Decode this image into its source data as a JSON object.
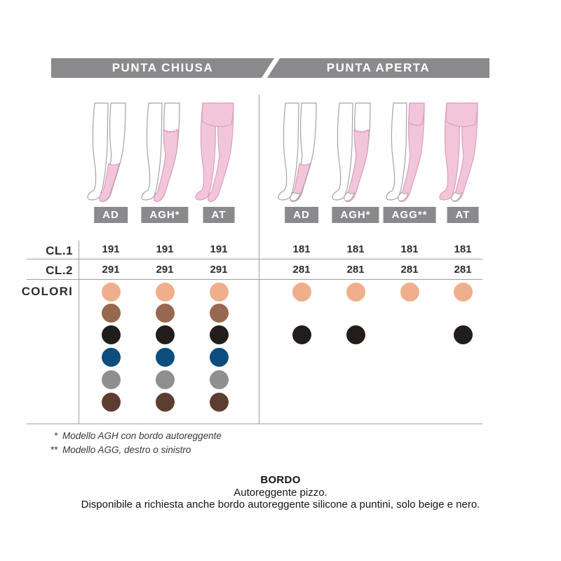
{
  "header": {
    "left_tab": "PUNTA CHIUSA",
    "right_tab": "PUNTA APERTA"
  },
  "row_labels": {
    "cl1": "CL.1",
    "cl2": "CL.2",
    "colori": "COLORI"
  },
  "closed_toe": {
    "title": "PUNTA CHIUSA",
    "columns": [
      {
        "model": "AD",
        "cl1": "191",
        "cl2": "291",
        "colors": [
          "beige",
          "brown",
          "black",
          "blue",
          "grey",
          "dark_brown"
        ]
      },
      {
        "model": "AGH*",
        "cl1": "191",
        "cl2": "291",
        "colors": [
          "beige",
          "brown",
          "black",
          "blue",
          "grey",
          "dark_brown"
        ]
      },
      {
        "model": "AT",
        "cl1": "191",
        "cl2": "291",
        "colors": [
          "beige",
          "brown",
          "black",
          "blue",
          "grey",
          "dark_brown"
        ]
      }
    ]
  },
  "open_toe": {
    "title": "PUNTA APERTA",
    "columns": [
      {
        "model": "AD",
        "cl1": "181",
        "cl2": "281",
        "colors": [
          "beige",
          "black"
        ]
      },
      {
        "model": "AGH*",
        "cl1": "181",
        "cl2": "281",
        "colors": [
          "beige",
          "black"
        ]
      },
      {
        "model": "AGG**",
        "cl1": "181",
        "cl2": "281",
        "colors": [
          "beige"
        ]
      },
      {
        "model": "AT",
        "cl1": "181",
        "cl2": "281",
        "colors": [
          "beige",
          "black"
        ]
      }
    ]
  },
  "color_order": [
    "beige",
    "brown",
    "black",
    "blue",
    "grey",
    "dark_brown"
  ],
  "palette": {
    "beige": "#efaf8c",
    "brown": "#97684f",
    "black": "#221c1a",
    "blue": "#0b4e7d",
    "grey": "#8f8f8f",
    "dark_brown": "#5c3d2f",
    "header_gray": "#8a8a8d",
    "line_gray": "#9e9e9e",
    "text_dark": "#2e2b29",
    "stocking_pink": "#f3c5da",
    "stocking_stroke": "#d9a0c0",
    "leg_stroke": "#a3a3a3"
  },
  "footnotes": [
    {
      "marker": "*",
      "text": "Modello AGH con bordo autoreggente"
    },
    {
      "marker": "**",
      "text": "Modello AGG, destro o sinistro"
    }
  ],
  "bordo": {
    "title": "BORDO",
    "line1": "Autoreggente pizzo.",
    "line2": "Disponibile a richiesta anche bordo autoreggente silicone a puntini, solo beige e nero."
  }
}
